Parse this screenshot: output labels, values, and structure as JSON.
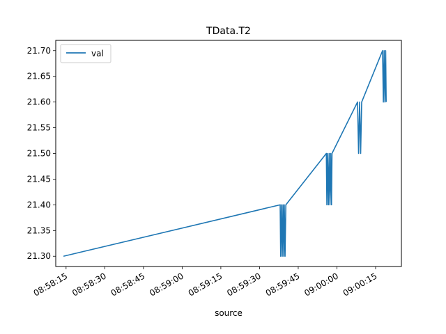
{
  "chart_data": {
    "type": "line",
    "title": "TData.T2",
    "xlabel": "source",
    "ylabel": "",
    "legend": {
      "entries": [
        "val"
      ],
      "placement": "upper-left"
    },
    "grid": false,
    "line_color": "#1f77b4",
    "x_kind": "time",
    "x_tick_labels": [
      "08:58:15",
      "08:58:30",
      "08:58:45",
      "08:59:00",
      "08:59:15",
      "08:59:30",
      "08:59:45",
      "09:00:00",
      "09:00:15"
    ],
    "xlim": [
      "08:58:11",
      "09:00:25"
    ],
    "y_tick_labels": [
      "21.30",
      "21.35",
      "21.40",
      "21.45",
      "21.50",
      "21.55",
      "21.60",
      "21.65",
      "21.70"
    ],
    "ylim": [
      21.28,
      21.72
    ],
    "series": [
      {
        "name": "val",
        "points": [
          [
            "08:58:14.00",
            21.3
          ],
          [
            "08:59:38.00",
            21.4
          ],
          [
            "08:59:38.20",
            21.3
          ],
          [
            "08:59:38.50",
            21.4
          ],
          [
            "08:59:38.80",
            21.3
          ],
          [
            "08:59:39.10",
            21.4
          ],
          [
            "08:59:39.40",
            21.3
          ],
          [
            "08:59:39.60",
            21.4
          ],
          [
            "08:59:39.90",
            21.3
          ],
          [
            "08:59:40.20",
            21.4
          ],
          [
            "08:59:55.90",
            21.5
          ],
          [
            "08:59:56.10",
            21.4
          ],
          [
            "08:59:56.40",
            21.5
          ],
          [
            "08:59:56.70",
            21.4
          ],
          [
            "08:59:57.00",
            21.5
          ],
          [
            "08:59:57.30",
            21.4
          ],
          [
            "08:59:57.60",
            21.5
          ],
          [
            "08:59:57.90",
            21.4
          ],
          [
            "08:59:58.10",
            21.5
          ],
          [
            "09:00:08.00",
            21.6
          ],
          [
            "09:00:08.40",
            21.5
          ],
          [
            "09:00:08.80",
            21.6
          ],
          [
            "09:00:09.20",
            21.5
          ],
          [
            "09:00:09.60",
            21.6
          ],
          [
            "09:00:17.70",
            21.7
          ],
          [
            "09:00:18.00",
            21.6
          ],
          [
            "09:00:18.30",
            21.7
          ],
          [
            "09:00:18.60",
            21.6
          ],
          [
            "09:00:18.90",
            21.7
          ],
          [
            "09:00:19.10",
            21.6
          ]
        ]
      }
    ]
  }
}
